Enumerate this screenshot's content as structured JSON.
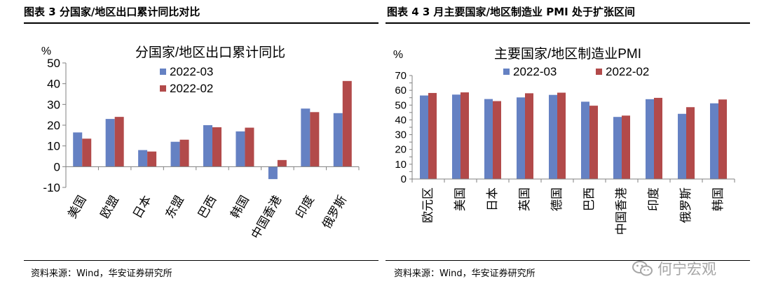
{
  "left": {
    "figure_title": "图表 3 分国家/地区出口累计同比对比",
    "source": "资料来源：Wind，华安证券研究所"
  },
  "right": {
    "figure_title": "图表 4 3 月主要国家/地区制造业 PMI 处于扩张区间",
    "source": "资料来源：Wind，华安证券研究所"
  },
  "watermark": {
    "text": "何宁宏观",
    "icon": "wechat-icon"
  },
  "colors": {
    "series1": "#6581c3",
    "series2": "#b24a4a"
  },
  "chart_data": [
    {
      "type": "bar",
      "title": "分国家/地区出口累计同比",
      "ylabel": "%",
      "ylim": [
        -10,
        50
      ],
      "yticks": [
        -10,
        0,
        10,
        20,
        30,
        40,
        50
      ],
      "categories": [
        "美国",
        "欧盟",
        "日本",
        "东盟",
        "巴西",
        "韩国",
        "中国香港",
        "印度",
        "俄罗斯"
      ],
      "series": [
        {
          "name": "2022-03",
          "values": [
            16.5,
            23.0,
            8.0,
            12.0,
            20.0,
            17.0,
            -6.0,
            28.0,
            25.8
          ]
        },
        {
          "name": "2022-02",
          "values": [
            13.5,
            24.0,
            7.3,
            13.0,
            19.0,
            18.8,
            3.2,
            26.3,
            41.3
          ]
        }
      ],
      "legend_position": "top-center",
      "grid": false
    },
    {
      "type": "bar",
      "title": "主要国家/地区制造业PMI",
      "ylabel": "%",
      "ylim": [
        0,
        70
      ],
      "yticks": [
        0,
        5,
        10,
        15,
        20,
        25,
        30,
        35,
        40,
        45,
        50,
        55,
        60,
        65,
        70
      ],
      "categories": [
        "欧元区",
        "美国",
        "日本",
        "英国",
        "德国",
        "巴西",
        "中国香港",
        "印度",
        "俄罗斯",
        "韩国"
      ],
      "series": [
        {
          "name": "2022-03",
          "values": [
            56.5,
            57.1,
            54.1,
            55.2,
            56.9,
            52.3,
            42.0,
            54.0,
            44.1,
            51.2
          ]
        },
        {
          "name": "2022-02",
          "values": [
            58.2,
            58.6,
            52.7,
            58.0,
            58.4,
            49.6,
            42.9,
            54.9,
            48.6,
            53.8
          ]
        }
      ],
      "legend_position": "top-center",
      "grid": false
    }
  ]
}
